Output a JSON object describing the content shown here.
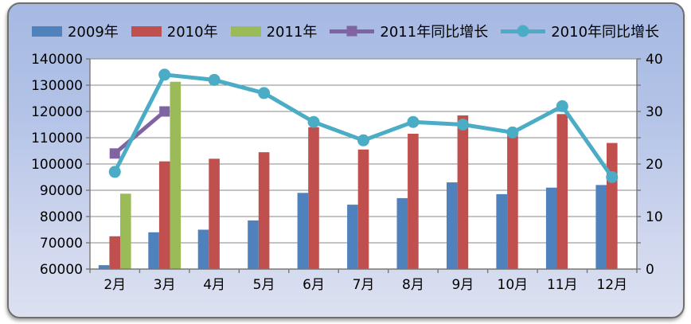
{
  "chart_data": {
    "type": "combo-bar-line",
    "title": "",
    "categories": [
      "2月",
      "3月",
      "4月",
      "5月",
      "6月",
      "7月",
      "8月",
      "9月",
      "10月",
      "11月",
      "12月"
    ],
    "series": [
      {
        "key": "2009",
        "name": "2009年",
        "kind": "bar",
        "axis": "left",
        "color": "#4F81BD",
        "values": [
          61500,
          74000,
          75000,
          78500,
          89000,
          84500,
          87000,
          93000,
          88500,
          91000,
          92000
        ]
      },
      {
        "key": "2010",
        "name": "2010年",
        "kind": "bar",
        "axis": "left",
        "color": "#C0504D",
        "values": [
          72500,
          101000,
          102000,
          104500,
          114000,
          105500,
          111500,
          118500,
          111000,
          119000,
          108000
        ]
      },
      {
        "key": "2011",
        "name": "2011年",
        "kind": "bar",
        "axis": "left",
        "color": "#9BBB59",
        "values": [
          88700,
          131300,
          null,
          null,
          null,
          null,
          null,
          null,
          null,
          null,
          null
        ]
      },
      {
        "key": "2011-growth",
        "name": "2011年同比增长",
        "kind": "line",
        "marker": "square",
        "axis": "right",
        "color": "#8064A2",
        "values": [
          22,
          30,
          null,
          null,
          null,
          null,
          null,
          null,
          null,
          null,
          null
        ]
      },
      {
        "key": "2010-growth",
        "name": "2010年同比增长",
        "kind": "line",
        "marker": "circle",
        "axis": "right",
        "color": "#4BACC6",
        "values": [
          18.5,
          37,
          36,
          33.5,
          28,
          24.5,
          28,
          27.5,
          26,
          31,
          17.5
        ]
      }
    ],
    "left_axis": {
      "min": 60000,
      "max": 140000,
      "step": 10000,
      "tick_labels": [
        "60000",
        "70000",
        "80000",
        "90000",
        "100000",
        "110000",
        "120000",
        "130000",
        "140000"
      ]
    },
    "right_axis": {
      "min": 0,
      "max": 40,
      "label_step": 10,
      "grid_step": 5,
      "tick_labels": [
        "0",
        "10",
        "20",
        "30",
        "40"
      ]
    },
    "grid": true,
    "legend_position": "top",
    "plot_bg_color": "#FFFFFF",
    "gridline_color": "#8A8A8A",
    "axis_color": "#777777",
    "text_color": "#000000"
  }
}
